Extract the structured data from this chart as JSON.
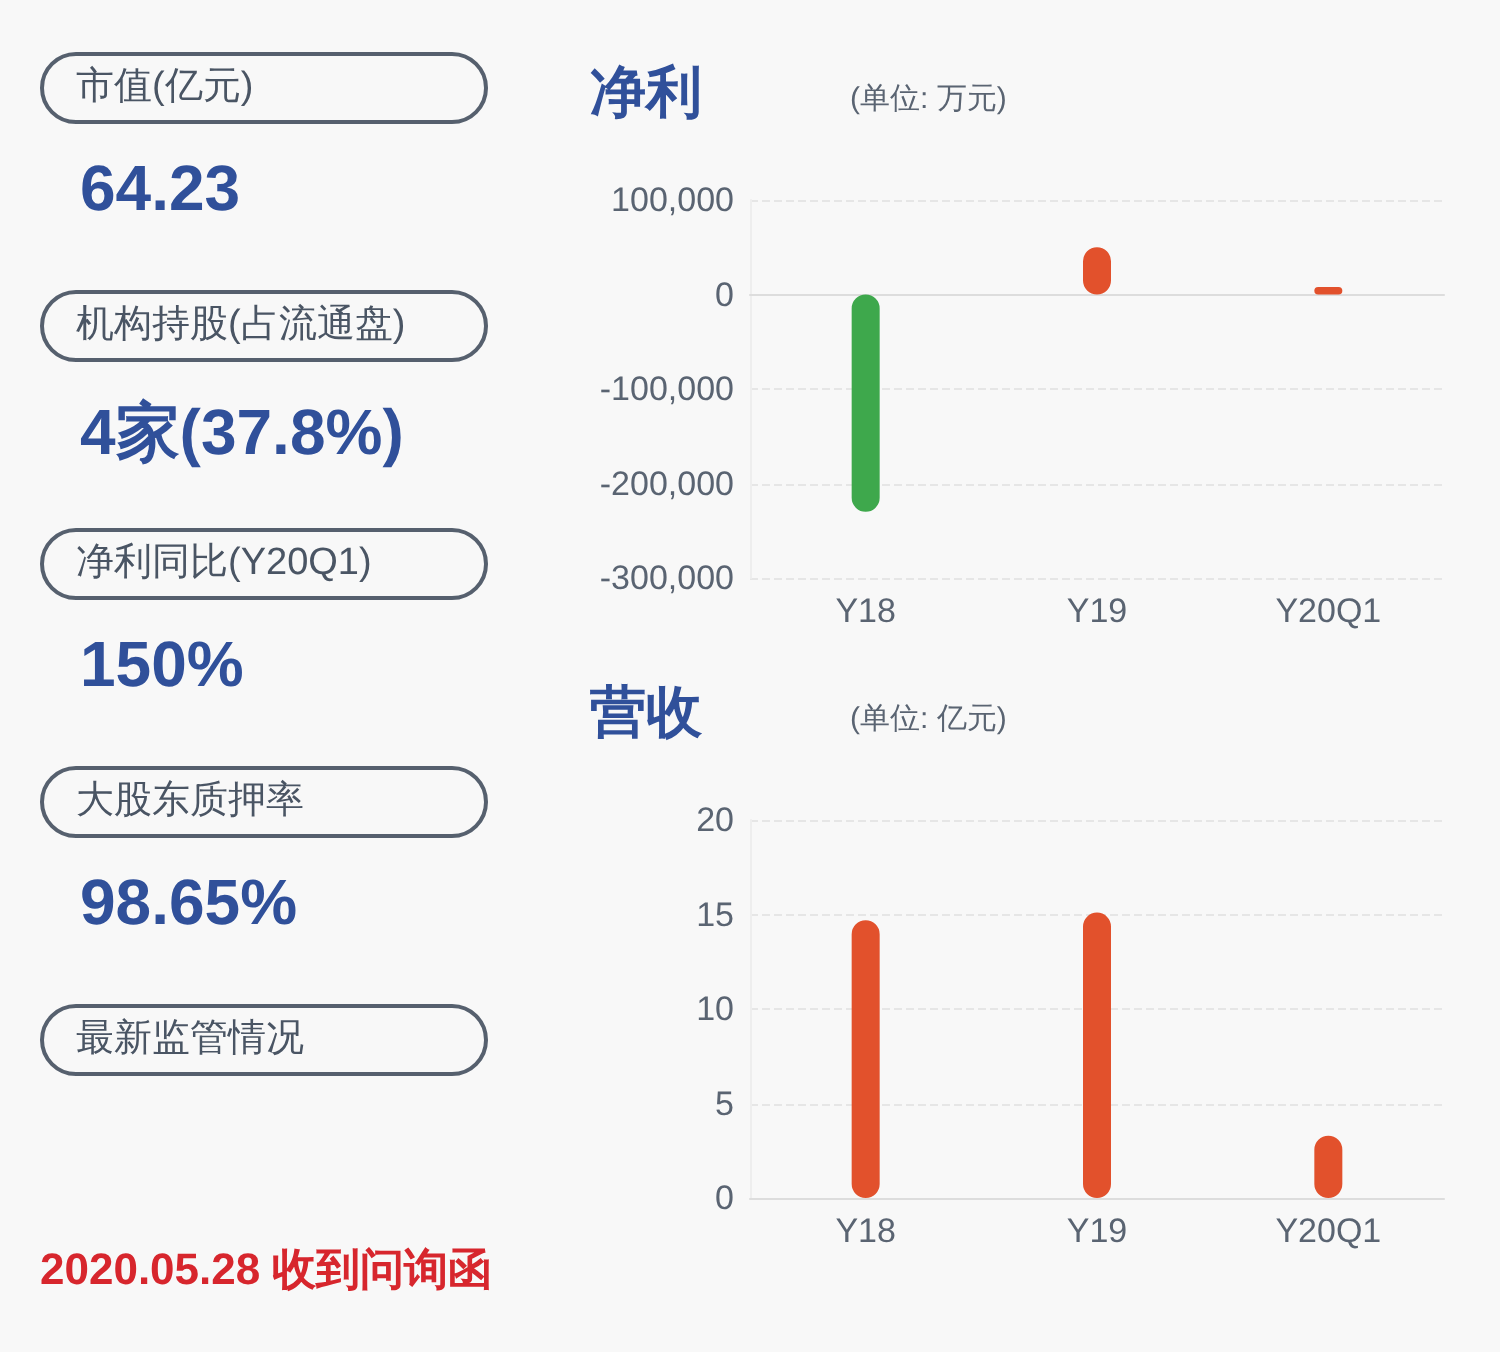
{
  "chart_data": [
    {
      "type": "other",
      "annotations": [
        "市值(亿元)",
        "64.23",
        "机构持股(占流通盘)",
        "4家(37.8%)",
        "净利同比(Y20Q1)",
        "150%",
        "大股东质押率",
        "98.65%",
        "最新监管情况",
        "2020.05.28 收到问询函"
      ]
    },
    {
      "type": "bar",
      "title": "净利",
      "subtitle": "(单位: 万元)",
      "categories": [
        "Y18",
        "Y19",
        "Y20Q1"
      ],
      "values": [
        -230000,
        50000,
        8000
      ],
      "colors": [
        "#3ea84c",
        "#e2512c",
        "#e2512c"
      ],
      "ylim": [
        -300000,
        100000
      ],
      "yticks": [
        {
          "value": -300000,
          "label": "-300,000"
        },
        {
          "value": -200000,
          "label": "-200,000"
        },
        {
          "value": -100000,
          "label": "-100,000"
        },
        0,
        {
          "value": 100000,
          "label": "100,000"
        }
      ],
      "grid": "y"
    },
    {
      "type": "bar",
      "title": "营收",
      "subtitle": "(单位: 亿元)",
      "categories": [
        "Y18",
        "Y19",
        "Y20Q1"
      ],
      "values": [
        14.7,
        15.1,
        3.3
      ],
      "colors": [
        "#e2512c",
        "#e2512c",
        "#e2512c"
      ],
      "ylim": [
        0,
        20
      ],
      "yticks": [
        0,
        5,
        10,
        15,
        20
      ],
      "grid": "y"
    }
  ]
}
